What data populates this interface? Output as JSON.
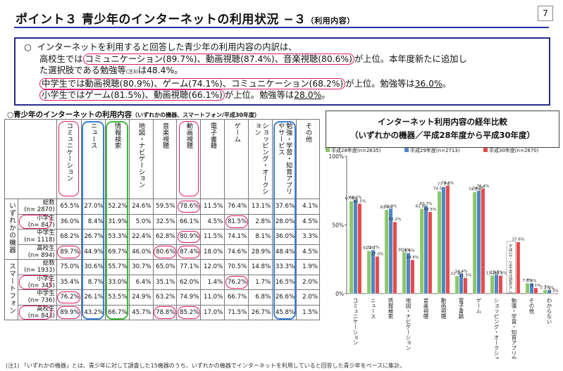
{
  "header": {
    "title": "ポイント３ 青少年のインターネットの利用状況 −３",
    "subtitle": "（利用内容）",
    "page_number": "7"
  },
  "summary": {
    "bullet": "○",
    "line1": "インターネットを利用すると回答した青少年の利用内容の内訳は、",
    "line2a": "高校生では",
    "line2_hl1": "コミュニケーション(89.7%)、動画視聴(87.4%)、音楽視聴(80.6%)",
    "line2b": "が上位。本年度新たに追加し",
    "line3a": "た選択肢である勉強等",
    "line3_note": "(注3)",
    "line3b": "は48.4%。",
    "line4_hl": "中学生では動画視聴(80.9%)、ゲーム(74.1%)、コミュニケーション(68.2%)",
    "line4b": "が上位。勉強等は",
    "line4_ul": "36.0%",
    "line4c": "。",
    "line5_hl": "小学生ではゲーム(81.5%)、動画視聴(66.1%)",
    "line5b": "が上位。勉強等は",
    "line5_ul": "28.0%",
    "line5c": "。"
  },
  "table": {
    "title": "○青少年のインターネットの利用内容",
    "title_note": "（いずれかの機器、スマートフォン/平成30年度）",
    "columns": [
      "コミュニケーション",
      "ニュース",
      "情報検索",
      "地図・ナビゲーション",
      "音楽視聴",
      "動画視聴",
      "電子書籍",
      "ゲーム",
      "ショッピング・オークション",
      "勉強・学習・知育アプリやサービス",
      "その他"
    ],
    "groups": [
      {
        "label": "いずれかの機器",
        "rows": [
          {
            "label": "総数",
            "n": "(n= 2870)",
            "values": [
              "65.5%",
              "27.0%",
              "52.2%",
              "24.6%",
              "59.5%",
              "78.6%",
              "11.5%",
              "76.4%",
              "13.1%",
              "37.6%",
              "4.1%"
            ]
          },
          {
            "label": "小学生",
            "n": "(n= 847)",
            "values": [
              "36.0%",
              "8.4%",
              "31.9%",
              "5.0%",
              "32.5%",
              "66.1%",
              "4.5%",
              "81.5%",
              "2.8%",
              "28.0%",
              "4.5%"
            ]
          },
          {
            "label": "中学生",
            "n": "(n= 1118)",
            "values": [
              "68.2%",
              "26.7%",
              "53.3%",
              "22.4%",
              "62.8%",
              "80.9%",
              "11.5%",
              "74.1%",
              "8.1%",
              "36.0%",
              "3.3%"
            ]
          },
          {
            "label": "高校生",
            "n": "(n= 894)",
            "values": [
              "89.7%",
              "44.9%",
              "69.7%",
              "46.0%",
              "80.6%",
              "87.4%",
              "18.0%",
              "74.6%",
              "28.9%",
              "48.4%",
              "4.5%"
            ]
          }
        ]
      },
      {
        "label": "スマートフォン",
        "rows": [
          {
            "label": "総数",
            "n": "(n= 1933)",
            "values": [
              "75.0%",
              "30.6%",
              "55.7%",
              "30.7%",
              "65.0%",
              "77.1%",
              "12.0%",
              "70.5%",
              "14.8%",
              "33.3%",
              "1.9%"
            ]
          },
          {
            "label": "小学生",
            "n": "(n= 345)",
            "values": [
              "35.4%",
              "8.7%",
              "33.0%",
              "6.4%",
              "35.1%",
              "62.0%",
              "1.4%",
              "76.2%",
              "1.7%",
              "16.5%",
              "2.0%"
            ]
          },
          {
            "label": "中学生",
            "n": "(n= 736)",
            "values": [
              "76.2%",
              "26.1%",
              "53.5%",
              "24.9%",
              "63.2%",
              "74.9%",
              "11.0%",
              "66.7%",
              "6.8%",
              "26.6%",
              "2.0%"
            ]
          },
          {
            "label": "高校生",
            "n": "(n= 843)",
            "values": [
              "89.9%",
              "43.2%",
              "66.7%",
              "45.7%",
              "78.8%",
              "85.2%",
              "17.0%",
              "71.5%",
              "26.7%",
              "45.8%",
              "1.5%"
            ]
          }
        ]
      }
    ]
  },
  "chart_data": {
    "type": "bar",
    "title": "インターネット利用内容の経年比較",
    "subtitle": "（いずれかの機器／平成28年度から平成30年度）",
    "categories": [
      "コミュニケーション",
      "ニュース",
      "情報検索",
      "地図・ナビゲーション",
      "音楽視聴",
      "動画視聴",
      "電子書籍",
      "ゲーム",
      "ショッピング・オークション",
      "勉強・学習・知育アプリやサービス",
      "その他",
      "わからない"
    ],
    "series": [
      {
        "name": "平成28年度(n=2635)",
        "color": "#8cc76b",
        "values": [
          67.4,
          31.2,
          61.0,
          30.1,
          61.8,
          74.5,
          12.9,
          74.0,
          13.2,
          null,
          7.6,
          2.7
        ]
      },
      {
        "name": "平成29年度(n=2713)",
        "color": "#4f86c6",
        "values": [
          68.2,
          31.7,
          61.9,
          29.6,
          63.7,
          77.7,
          14.4,
          74.9,
          13.7,
          null,
          7.5,
          2.4
        ]
      },
      {
        "name": "平成30年度(n=2870)",
        "color": "#e54a4a",
        "values": [
          65.5,
          27.0,
          52.2,
          24.6,
          59.5,
          78.6,
          11.5,
          76.4,
          13.1,
          37.6,
          4.1,
          0.3
        ]
      }
    ],
    "ylim": [
      0,
      100
    ],
    "ytick_labels": [
      "0%",
      "50%",
      "100%"
    ],
    "annotation": "平成28・29年度は調査なし"
  },
  "footnote": "(注1) 「いずれかの機器」とは、青少年に対して調査した15機器のうち、いずれかの機器でインターネットを利用していると回答した青少年をベースに集計。"
}
